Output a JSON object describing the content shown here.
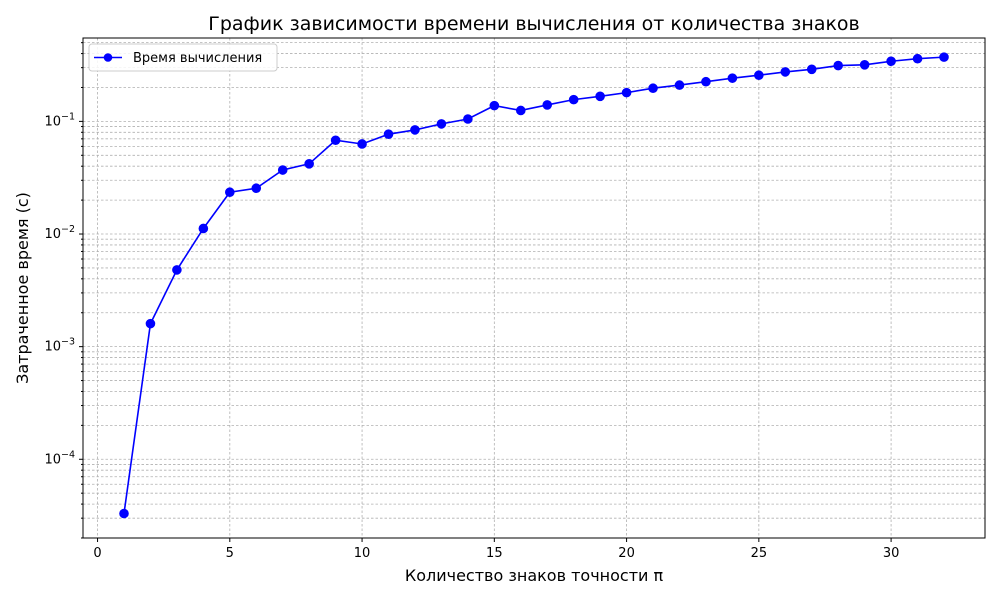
{
  "chart_data": {
    "type": "line",
    "title": "График зависимости времени вычисления от количества знаков",
    "xlabel": "Количество знаков точности π",
    "ylabel": "Затраченное время (с)",
    "xlim": [
      -0.55,
      33.55
    ],
    "ylim": [
      2e-05,
      0.55
    ],
    "yscale": "log",
    "grid": true,
    "legend_position": "top-left",
    "x_ticks": [
      0,
      5,
      10,
      15,
      20,
      25,
      30
    ],
    "y_ticks": [
      {
        "value": 0.0001,
        "base": "10",
        "exp": "−4"
      },
      {
        "value": 0.001,
        "base": "10",
        "exp": "−3"
      },
      {
        "value": 0.01,
        "base": "10",
        "exp": "−2"
      },
      {
        "value": 0.1,
        "base": "10",
        "exp": "−1"
      }
    ],
    "series": [
      {
        "name": "Время вычисления",
        "color": "#0000ff",
        "marker": "circle",
        "x": [
          1,
          2,
          3,
          4,
          5,
          6,
          7,
          8,
          9,
          10,
          11,
          12,
          13,
          14,
          15,
          16,
          17,
          18,
          19,
          20,
          21,
          22,
          23,
          24,
          25,
          26,
          27,
          28,
          29,
          30,
          31,
          32
        ],
        "y": [
          3.3e-05,
          0.0016,
          0.0048,
          0.0112,
          0.0235,
          0.0255,
          0.037,
          0.042,
          0.068,
          0.063,
          0.077,
          0.084,
          0.095,
          0.105,
          0.138,
          0.125,
          0.14,
          0.156,
          0.167,
          0.18,
          0.197,
          0.21,
          0.225,
          0.242,
          0.257,
          0.275,
          0.29,
          0.313,
          0.318,
          0.342,
          0.36,
          0.372
        ]
      }
    ]
  }
}
